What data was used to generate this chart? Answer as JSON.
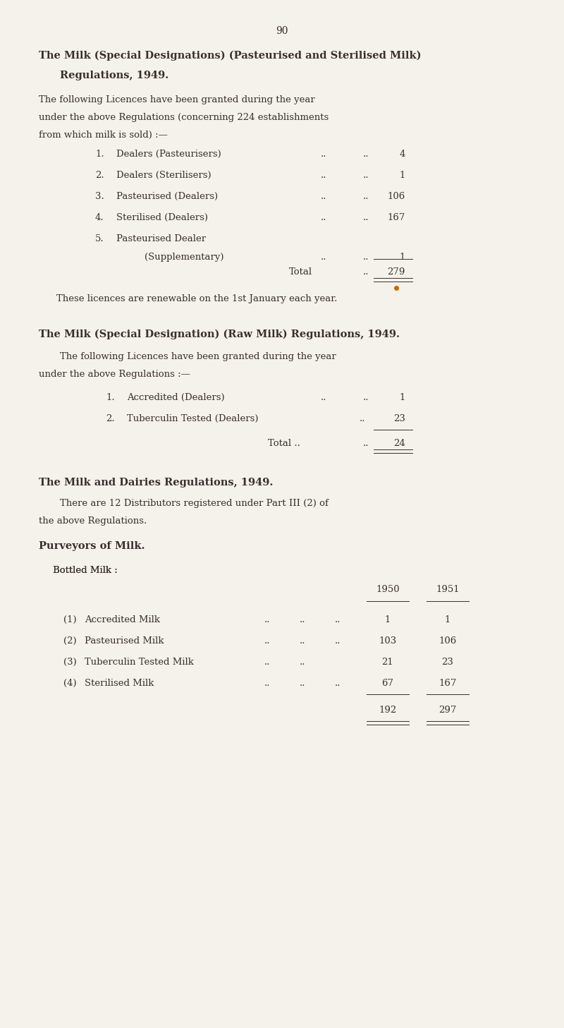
{
  "page_number": "90",
  "bg_color": "#f5f2eb",
  "text_color": "#3a2e2e",
  "section1_title": "The Milk (Special Designations) (Pasteurised and Sterilised Milk)\n        Regulations, 1949.",
  "section1_intro": "The following Licences have been granted during the year\nunder the above Regulations (concerning 224 establishments\nfrom which milk is sold) :—",
  "section1_items": [
    [
      "1.",
      "Dealers (Pasteurisers)",
      "..",
      "..",
      "4"
    ],
    [
      "2.",
      "Dealers (Sterilisers)",
      "..",
      "..",
      "1"
    ],
    [
      "3.",
      "Pasteurised (Dealers)",
      "..",
      "..",
      "106"
    ],
    [
      "4.",
      "Sterilised (Dealers)",
      "..",
      "..",
      "167"
    ],
    [
      "5.",
      "Pasteurised Dealer\n             (Supplementary)",
      "..",
      "..",
      "1"
    ]
  ],
  "section1_total_label": "Total",
  "section1_total": "279",
  "section1_note": "These licences are renewable on the 1st January each year.",
  "section2_title": "The Milk (Special Designation) (Raw Milk) Regulations, 1949.",
  "section2_intro": "The following Licences have been granted during the year\nunder the above Regulations :—",
  "section2_items": [
    [
      "1.",
      "Accredited (Dealers)",
      "..",
      "..",
      "1"
    ],
    [
      "2.",
      "Tuberculin Tested (Dealers)",
      "..",
      "23"
    ]
  ],
  "section2_total_label": "Total ..",
  "section2_total": "24",
  "section3_title": "The Milk and Dairies Regulations, 1949.",
  "section3_body": "There are 12 Distributors registered under Part III (2) of\nthe above Regulations.",
  "section4_title": "Purveyors of Milk.",
  "section4_sub": "Bottled Milk :",
  "section4_col1": "1950",
  "section4_col2": "1951",
  "section4_items": [
    [
      "(1)",
      "Accredited Milk",
      "..",
      "..",
      "..",
      "1",
      "1"
    ],
    [
      "(2)",
      "Pasteurised Milk",
      "..",
      "..",
      "..",
      "103",
      "106"
    ],
    [
      "(3)",
      "Tuberculin Tested Milk",
      "..",
      "..",
      "21",
      "23"
    ],
    [
      "(4)",
      "Sterilised Milk",
      "..",
      "..",
      "..",
      "67",
      "167"
    ]
  ],
  "section4_total1": "192",
  "section4_total2": "297"
}
